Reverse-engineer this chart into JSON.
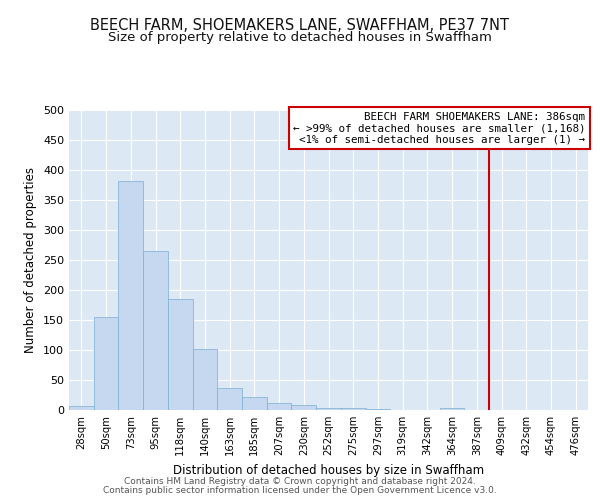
{
  "title": "BEECH FARM, SHOEMAKERS LANE, SWAFFHAM, PE37 7NT",
  "subtitle": "Size of property relative to detached houses in Swaffham",
  "xlabel": "Distribution of detached houses by size in Swaffham",
  "ylabel": "Number of detached properties",
  "bar_labels": [
    "28sqm",
    "50sqm",
    "73sqm",
    "95sqm",
    "118sqm",
    "140sqm",
    "163sqm",
    "185sqm",
    "207sqm",
    "230sqm",
    "252sqm",
    "275sqm",
    "297sqm",
    "319sqm",
    "342sqm",
    "364sqm",
    "387sqm",
    "409sqm",
    "432sqm",
    "454sqm",
    "476sqm"
  ],
  "bar_values": [
    7,
    155,
    381,
    265,
    185,
    101,
    37,
    22,
    11,
    9,
    4,
    3,
    2,
    0,
    0,
    3,
    0,
    0,
    0,
    0,
    0
  ],
  "bar_color": "#c5d8ef",
  "bar_edgecolor": "#7aafd4",
  "vline_color": "#cc0000",
  "annotation_title": "BEECH FARM SHOEMAKERS LANE: 386sqm",
  "annotation_line1": "← >99% of detached houses are smaller (1,168)",
  "annotation_line2": "<1% of semi-detached houses are larger (1) →",
  "annotation_box_edgecolor": "#cc0000",
  "ylim": [
    0,
    500
  ],
  "yticks": [
    0,
    50,
    100,
    150,
    200,
    250,
    300,
    350,
    400,
    450,
    500
  ],
  "background_color": "#dde8f5",
  "footer1": "Contains HM Land Registry data © Crown copyright and database right 2024.",
  "footer2": "Contains public sector information licensed under the Open Government Licence v3.0.",
  "title_fontsize": 10.5,
  "subtitle_fontsize": 9.5
}
